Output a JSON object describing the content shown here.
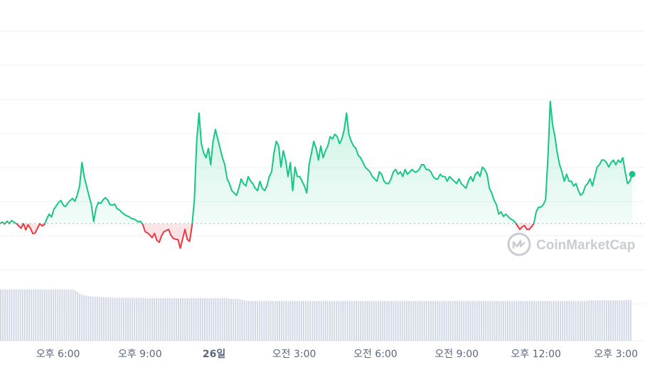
{
  "watermark": {
    "text": "CoinMarketCap",
    "icon": "coinmarketcap-logo-icon"
  },
  "colors": {
    "up": "#16c784",
    "down": "#ea3943",
    "grid": "#eff2f5",
    "baseline": "#a6b0c3",
    "volume": "#cfd6e4",
    "tick": "#58667e"
  },
  "chart_data": {
    "type": "line",
    "title": "",
    "xlabel": "",
    "ylabel": "",
    "grid": true,
    "baseline_reference": true,
    "x_ticks": [
      {
        "label": "오후 6:00",
        "bold": false,
        "t": 0.09
      },
      {
        "label": "오후 9:00",
        "bold": false,
        "t": 0.217
      },
      {
        "label": "26일",
        "bold": true,
        "t": 0.332
      },
      {
        "label": "오전 3:00",
        "bold": false,
        "t": 0.456
      },
      {
        "label": "오전 6:00",
        "bold": false,
        "t": 0.582
      },
      {
        "label": "오전 9:00",
        "bold": false,
        "t": 0.708
      },
      {
        "label": "오후 12:00",
        "bold": false,
        "t": 0.831
      },
      {
        "label": "오후 3:00",
        "bold": false,
        "t": 0.955
      }
    ],
    "baseline": 0.2,
    "ylim": [
      0,
      1
    ],
    "series": [
      {
        "values": [
          0.2,
          0.206,
          0.198,
          0.21,
          0.2,
          0.213,
          0.205,
          0.2,
          0.19,
          0.18,
          0.2,
          0.173,
          0.195,
          0.18,
          0.157,
          0.16,
          0.18,
          0.2,
          0.19,
          0.196,
          0.22,
          0.24,
          0.228,
          0.26,
          0.275,
          0.29,
          0.298,
          0.278,
          0.272,
          0.288,
          0.298,
          0.307,
          0.295,
          0.322,
          0.36,
          0.46,
          0.398,
          0.358,
          0.318,
          0.282,
          0.208,
          0.265,
          0.29,
          0.286,
          0.3,
          0.31,
          0.3,
          0.28,
          0.278,
          0.283,
          0.263,
          0.258,
          0.248,
          0.24,
          0.233,
          0.23,
          0.222,
          0.22,
          0.215,
          0.207,
          0.21,
          0.196,
          0.165,
          0.16,
          0.151,
          0.14,
          0.158,
          0.128,
          0.12,
          0.148,
          0.165,
          0.17,
          0.175,
          0.15,
          0.137,
          0.133,
          0.132,
          0.095,
          0.135,
          0.175,
          0.132,
          0.124,
          0.191,
          0.3,
          0.55,
          0.67,
          0.54,
          0.5,
          0.48,
          0.52,
          0.45,
          0.55,
          0.6,
          0.56,
          0.52,
          0.48,
          0.45,
          0.39,
          0.37,
          0.34,
          0.33,
          0.32,
          0.35,
          0.39,
          0.37,
          0.36,
          0.4,
          0.38,
          0.37,
          0.35,
          0.34,
          0.38,
          0.35,
          0.34,
          0.36,
          0.4,
          0.42,
          0.5,
          0.55,
          0.53,
          0.44,
          0.51,
          0.47,
          0.4,
          0.46,
          0.34,
          0.44,
          0.4,
          0.4,
          0.38,
          0.36,
          0.33,
          0.45,
          0.5,
          0.55,
          0.52,
          0.47,
          0.53,
          0.48,
          0.51,
          0.53,
          0.57,
          0.56,
          0.58,
          0.57,
          0.54,
          0.56,
          0.6,
          0.67,
          0.58,
          0.55,
          0.53,
          0.52,
          0.49,
          0.48,
          0.46,
          0.44,
          0.43,
          0.42,
          0.4,
          0.39,
          0.38,
          0.42,
          0.41,
          0.38,
          0.37,
          0.37,
          0.39,
          0.42,
          0.43,
          0.41,
          0.42,
          0.4,
          0.43,
          0.41,
          0.42,
          0.43,
          0.42,
          0.42,
          0.43,
          0.45,
          0.45,
          0.43,
          0.43,
          0.42,
          0.4,
          0.39,
          0.39,
          0.41,
          0.4,
          0.4,
          0.38,
          0.4,
          0.39,
          0.38,
          0.37,
          0.39,
          0.37,
          0.36,
          0.35,
          0.38,
          0.4,
          0.38,
          0.41,
          0.42,
          0.4,
          0.44,
          0.43,
          0.41,
          0.35,
          0.33,
          0.3,
          0.28,
          0.24,
          0.25,
          0.23,
          0.24,
          0.23,
          0.22,
          0.215,
          0.205,
          0.19,
          0.175,
          0.186,
          0.192,
          0.175,
          0.175,
          0.186,
          0.2,
          0.25,
          0.27,
          0.27,
          0.28,
          0.3,
          0.48,
          0.72,
          0.62,
          0.57,
          0.5,
          0.45,
          0.42,
          0.38,
          0.41,
          0.38,
          0.38,
          0.36,
          0.37,
          0.34,
          0.32,
          0.33,
          0.36,
          0.37,
          0.39,
          0.36,
          0.4,
          0.44,
          0.45,
          0.47,
          0.47,
          0.46,
          0.44,
          0.46,
          0.47,
          0.45,
          0.47,
          0.46,
          0.48,
          0.42,
          0.37,
          0.38,
          0.41
        ]
      }
    ]
  },
  "volume_data": {
    "values": [
      0.98,
      0.98,
      0.98,
      0.98,
      0.98,
      0.98,
      0.98,
      0.98,
      0.98,
      0.98,
      0.98,
      0.98,
      0.98,
      0.98,
      0.98,
      0.98,
      0.98,
      0.98,
      0.98,
      0.98,
      0.98,
      0.98,
      0.98,
      0.98,
      0.98,
      0.98,
      0.98,
      0.98,
      0.98,
      0.98,
      0.98,
      0.98,
      0.98,
      0.98,
      0.96,
      0.93,
      0.9,
      0.88,
      0.87,
      0.86,
      0.85,
      0.85,
      0.84,
      0.84,
      0.84,
      0.83,
      0.83,
      0.83,
      0.83,
      0.83,
      0.83,
      0.82,
      0.82,
      0.82,
      0.82,
      0.82,
      0.82,
      0.82,
      0.82,
      0.82,
      0.82,
      0.82,
      0.82,
      0.82,
      0.82,
      0.82,
      0.81,
      0.81,
      0.81,
      0.81,
      0.81,
      0.81,
      0.81,
      0.81,
      0.81,
      0.81,
      0.81,
      0.81,
      0.81,
      0.81,
      0.81,
      0.81,
      0.81,
      0.81,
      0.81,
      0.81,
      0.81,
      0.81,
      0.81,
      0.81,
      0.81,
      0.81,
      0.81,
      0.81,
      0.81,
      0.81,
      0.81,
      0.81,
      0.81,
      0.81,
      0.81,
      0.81,
      0.81,
      0.81,
      0.8,
      0.8,
      0.8,
      0.8,
      0.8,
      0.79,
      0.78,
      0.77,
      0.76,
      0.76,
      0.76,
      0.76,
      0.76,
      0.76,
      0.76,
      0.76,
      0.76,
      0.76,
      0.76,
      0.76,
      0.76,
      0.76,
      0.76,
      0.76,
      0.76,
      0.76,
      0.76,
      0.76,
      0.76,
      0.76,
      0.76,
      0.76,
      0.76,
      0.76,
      0.76,
      0.76,
      0.76,
      0.76,
      0.76,
      0.76,
      0.76,
      0.76,
      0.76,
      0.76,
      0.76,
      0.76,
      0.76,
      0.76,
      0.76,
      0.76,
      0.76,
      0.76,
      0.76,
      0.76,
      0.76,
      0.76,
      0.76,
      0.76,
      0.76,
      0.76,
      0.76,
      0.76,
      0.76,
      0.76,
      0.76,
      0.76,
      0.76,
      0.76,
      0.76,
      0.76,
      0.76,
      0.76,
      0.76,
      0.76,
      0.76,
      0.76,
      0.76,
      0.76,
      0.76,
      0.76,
      0.76,
      0.76,
      0.76,
      0.76,
      0.76,
      0.76,
      0.76,
      0.76,
      0.76,
      0.76,
      0.76,
      0.76,
      0.76,
      0.76,
      0.76,
      0.76,
      0.76,
      0.76,
      0.76,
      0.76,
      0.76,
      0.76,
      0.76,
      0.76,
      0.76,
      0.76,
      0.76,
      0.76,
      0.76,
      0.76,
      0.76,
      0.76,
      0.76,
      0.76,
      0.76,
      0.76,
      0.76,
      0.76,
      0.76,
      0.76,
      0.76,
      0.76,
      0.76,
      0.76,
      0.76,
      0.76,
      0.76,
      0.76,
      0.76,
      0.76,
      0.76,
      0.76,
      0.76,
      0.76,
      0.76,
      0.76,
      0.76,
      0.76,
      0.76,
      0.76,
      0.76,
      0.76,
      0.76,
      0.76,
      0.76,
      0.76,
      0.76,
      0.76,
      0.76,
      0.76,
      0.76,
      0.76,
      0.76,
      0.76,
      0.76,
      0.76,
      0.76,
      0.76,
      0.76,
      0.76,
      0.76,
      0.76,
      0.76,
      0.76,
      0.77,
      0.77,
      0.77,
      0.77,
      0.77,
      0.77,
      0.77,
      0.77,
      0.77,
      0.77,
      0.77,
      0.77,
      0.77,
      0.77,
      0.77,
      0.77,
      0.77,
      0.78,
      0.78,
      0.78
    ]
  }
}
